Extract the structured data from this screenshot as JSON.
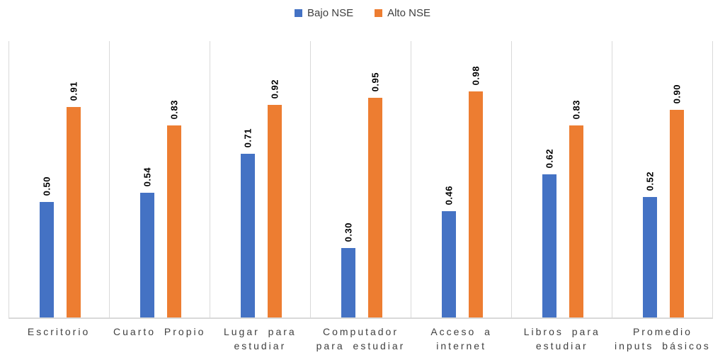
{
  "background_color": "#FFFFFF",
  "legend": {
    "position": "top-center",
    "items": [
      {
        "label": "Bajo NSE",
        "color": "#4472C4"
      },
      {
        "label": "Alto NSE",
        "color": "#ED7D31"
      }
    ]
  },
  "chart_data": {
    "type": "bar",
    "title": "",
    "xlabel": "",
    "ylabel": "",
    "ylim": [
      0,
      1.0
    ],
    "grid": "vertical-category-separators",
    "grid_color": "#D9D9D9",
    "axis_line_color": "#D9D9D9",
    "legend_position": "top-center",
    "data_label_rotation": -90,
    "categories": [
      "Escritorio",
      "Cuarto Propio",
      "Lugar para estudiar",
      "Computador para estudiar",
      "Acceso a internet",
      "Libros para estudiar",
      "Promedio inputs básicos"
    ],
    "category_lines": [
      [
        "Escritorio"
      ],
      [
        "Cuarto Propio"
      ],
      [
        "Lugar para",
        "estudiar"
      ],
      [
        "Computador",
        "para estudiar"
      ],
      [
        "Acceso a",
        "internet"
      ],
      [
        "Libros para",
        "estudiar"
      ],
      [
        "Promedio",
        "inputs básicos"
      ]
    ],
    "series": [
      {
        "name": "Bajo NSE",
        "color": "#4472C4",
        "values": [
          0.5,
          0.54,
          0.71,
          0.3,
          0.46,
          0.62,
          0.52
        ],
        "labels": [
          "0.50",
          "0.54",
          "0.71",
          "0.30",
          "0.46",
          "0.62",
          "0.52"
        ]
      },
      {
        "name": "Alto NSE",
        "color": "#ED7D31",
        "values": [
          0.91,
          0.83,
          0.92,
          0.95,
          0.98,
          0.83,
          0.9
        ],
        "labels": [
          "0.91",
          "0.83",
          "0.92",
          "0.95",
          "0.98",
          "0.83",
          "0.90"
        ]
      }
    ]
  }
}
